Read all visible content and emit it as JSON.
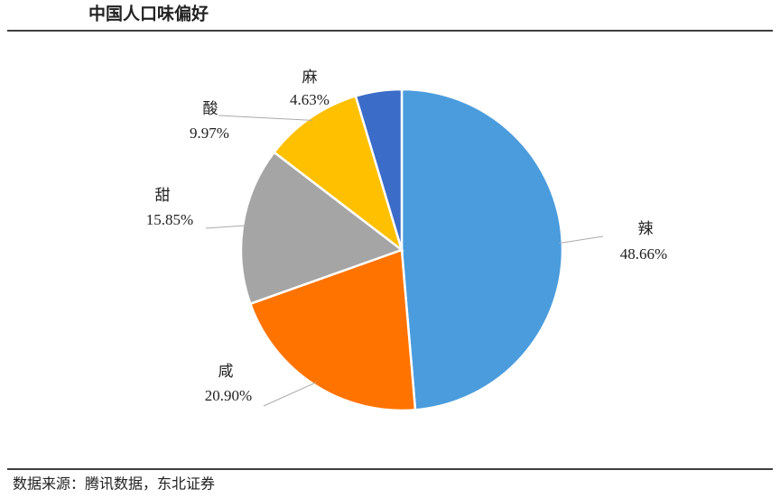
{
  "chart_data": {
    "type": "pie",
    "title": "中国人口味偏好",
    "categories": [
      "辣",
      "咸",
      "甜",
      "酸",
      "麻"
    ],
    "values": [
      48.66,
      20.9,
      15.85,
      9.97,
      4.63
    ],
    "value_labels": [
      "48.66%",
      "20.90%",
      "15.85%",
      "9.97%",
      "4.63%"
    ],
    "colors": [
      "#4a9cdc",
      "#ff7300",
      "#a5a5a5",
      "#ffc000",
      "#3a6cc8"
    ],
    "source": "数据来源：腾讯数据，东北证券"
  }
}
